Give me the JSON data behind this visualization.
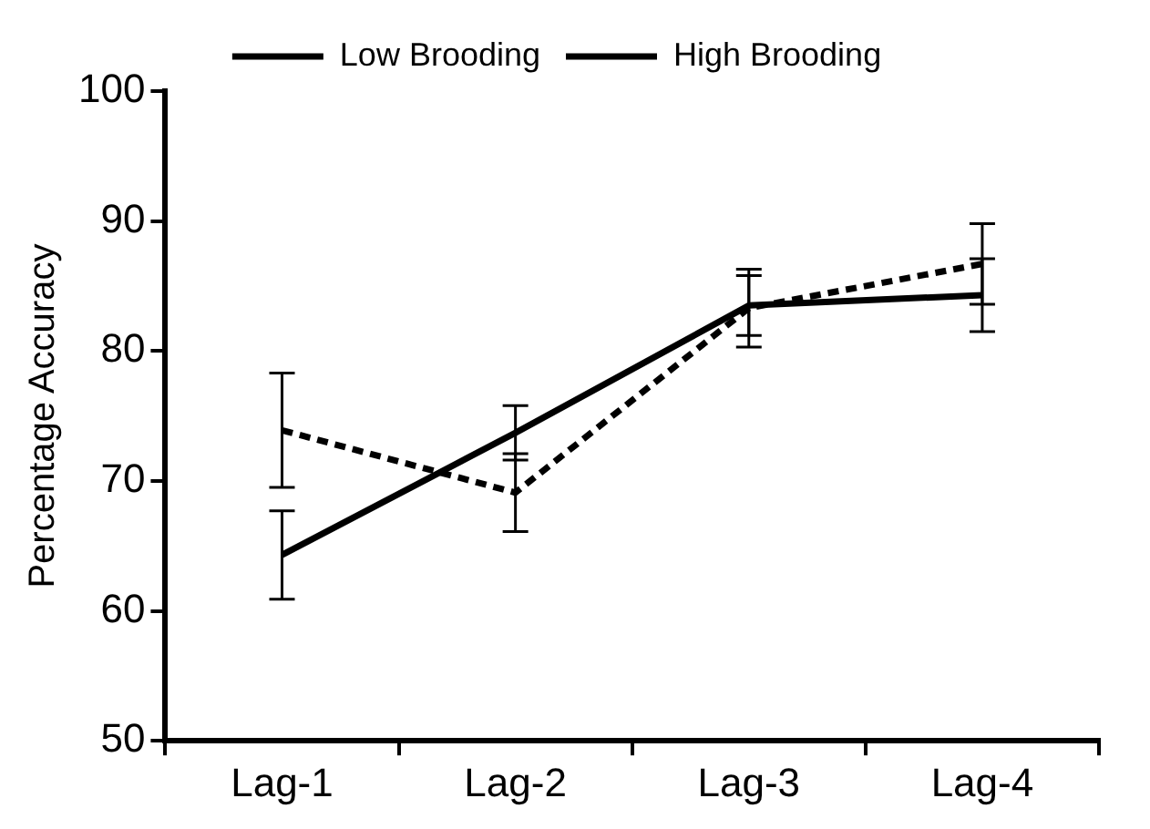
{
  "chart_data": {
    "type": "line",
    "ylabel": "Percentage Accuracy",
    "categories": [
      "Lag-1",
      "Lag-2",
      "Lag-3",
      "Lag-4"
    ],
    "series": [
      {
        "name": "Low Brooding",
        "color": "#000000",
        "line_style": "dashed",
        "values": [
          73.9,
          69.1,
          83.3,
          86.7
        ],
        "errors": [
          4.4,
          3,
          3,
          3.1
        ]
      },
      {
        "name": "High Brooding",
        "color": "#000000",
        "line_style": "solid",
        "values": [
          64.3,
          73.7,
          83.5,
          84.3
        ],
        "errors": [
          3.4,
          2.1,
          2.3,
          2.8
        ]
      }
    ],
    "ylim": [
      50,
      100
    ],
    "yticks": [
      50,
      60,
      70,
      80,
      90,
      100
    ],
    "grid": false,
    "legend": "top",
    "marker": "none"
  }
}
